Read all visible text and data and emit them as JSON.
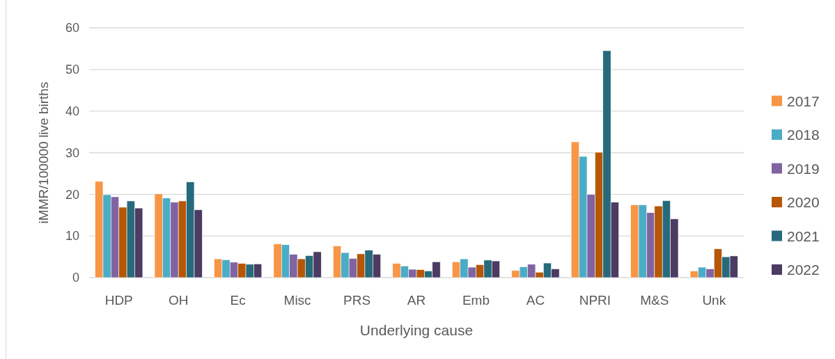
{
  "chart_data": {
    "type": "bar",
    "xlabel": "Underlying cause",
    "ylabel": "iMMR/100000 live births",
    "categories": [
      "HDP",
      "OH",
      "Ec",
      "Misc",
      "PRS",
      "AR",
      "Emb",
      "AC",
      "NPRI",
      "M&S",
      "Unk"
    ],
    "series": [
      {
        "name": "2017",
        "color": "#f79646",
        "values": [
          23.1,
          20.1,
          4.5,
          8.1,
          7.6,
          3.4,
          3.8,
          1.7,
          32.6,
          17.5,
          1.6
        ]
      },
      {
        "name": "2018",
        "color": "#4bacc6",
        "values": [
          19.9,
          19.1,
          4.3,
          7.9,
          6.0,
          2.8,
          4.5,
          2.6,
          29.1,
          17.5,
          2.5
        ]
      },
      {
        "name": "2019",
        "color": "#8064a2",
        "values": [
          19.4,
          18.1,
          3.7,
          5.6,
          4.6,
          2.0,
          2.5,
          3.2,
          20.0,
          15.6,
          2.1
        ]
      },
      {
        "name": "2020",
        "color": "#b65708",
        "values": [
          16.9,
          18.4,
          3.4,
          4.5,
          5.7,
          1.9,
          3.1,
          1.3,
          30.1,
          17.2,
          6.9
        ]
      },
      {
        "name": "2021",
        "color": "#276a7c",
        "values": [
          18.4,
          23.0,
          3.2,
          5.3,
          6.6,
          1.6,
          4.2,
          3.5,
          54.5,
          18.5,
          5.0
        ]
      },
      {
        "name": "2022",
        "color": "#4c3b62",
        "values": [
          16.7,
          16.3,
          3.3,
          6.2,
          5.6,
          3.8,
          4.0,
          2.1,
          18.1,
          14.1,
          5.2
        ]
      }
    ],
    "ylim": [
      0,
      60
    ],
    "yticks": [
      0,
      10,
      20,
      30,
      40,
      50,
      60
    ],
    "grid": "y",
    "legend": "right"
  }
}
